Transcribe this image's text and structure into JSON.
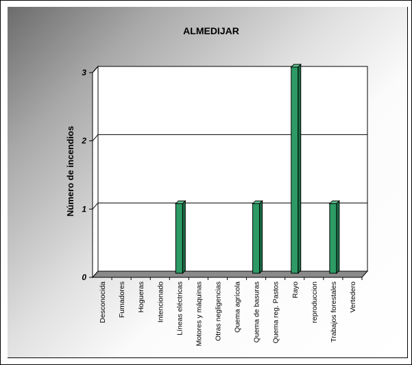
{
  "chart_data": {
    "type": "bar",
    "title": "ALMEDIJAR",
    "xlabel": "",
    "ylabel": "Número de incendios",
    "ylim": [
      0,
      3
    ],
    "yticks": [
      0,
      1,
      2,
      3
    ],
    "grid": true,
    "legend": "none",
    "categories": [
      "Desconocida",
      "Fumadores",
      "Hogueras",
      "Intencionado",
      "Líneas eléctricas",
      "Motores y máquinas",
      "Otras negligencias",
      "Quema agrícola",
      "Quema de basuras",
      "Quema reg. Pastos",
      "Rayo",
      "reproduccion",
      "Trabajos forestales",
      "Vertedero"
    ],
    "series": [
      {
        "values": [
          0,
          0,
          0,
          0,
          1,
          0,
          0,
          0,
          1,
          0,
          3,
          0,
          1,
          0
        ]
      }
    ],
    "colors": {
      "bar": "#2e9a66",
      "bar_side": "#1d6e46",
      "bar_top": "#5fc090",
      "floor": "#8a8a8a",
      "wall": "#ffffff"
    }
  }
}
